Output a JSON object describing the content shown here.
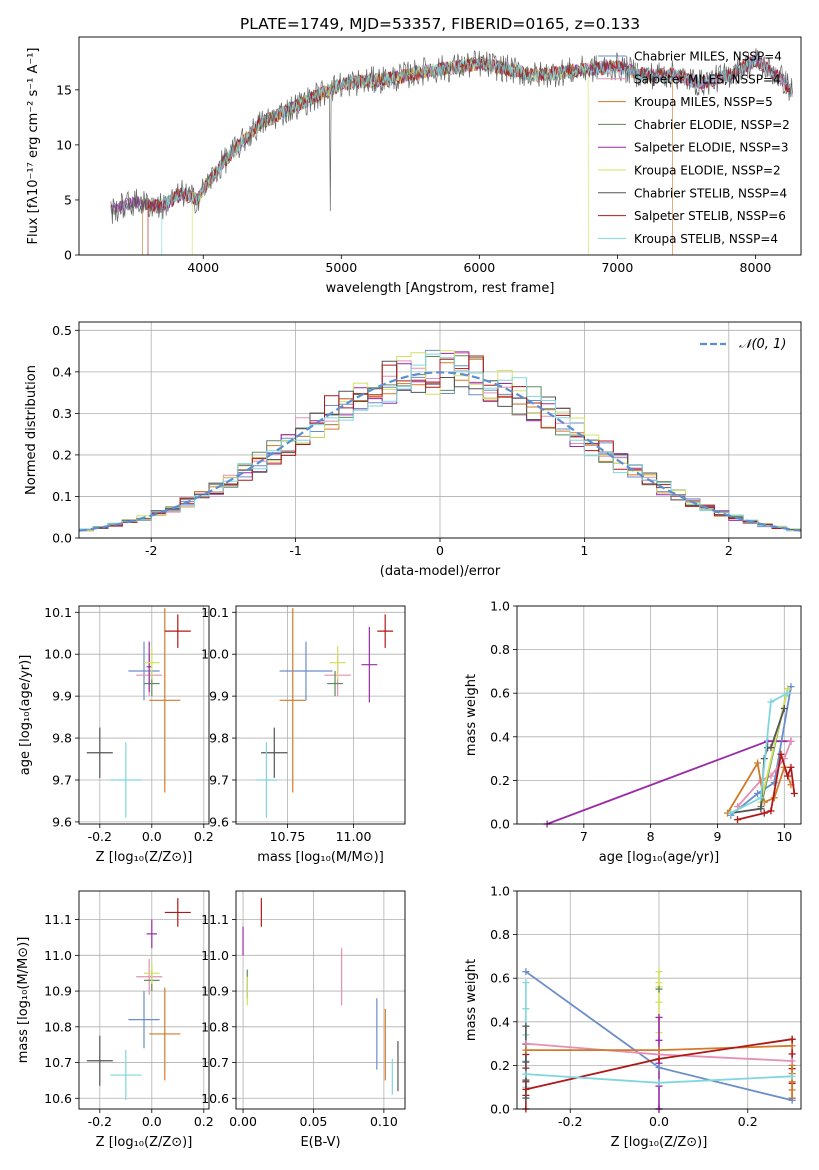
{
  "figure_title": "PLATE=1749, MJD=53357, FIBERID=0165, z=0.133",
  "colors": {
    "chabrier_miles": "#6b8ec9",
    "salpeter_miles": "#e58fb4",
    "kroupa_miles": "#d27a2a",
    "chabrier_elodie": "#5e8b5e",
    "salpeter_elodie": "#9b2aa8",
    "kroupa_elodie": "#d4e060",
    "chabrier_stelib": "#555555",
    "salpeter_stelib": "#b01818",
    "kroupa_stelib": "#7fd7dd",
    "gauss": "#5b8fd0",
    "grid": "#b0b0b0"
  },
  "chart_data": [
    {
      "id": "spectrum",
      "type": "line",
      "xlabel": "wavelength [Angstrom, rest frame]",
      "ylabel": "Flux [fλ10⁻¹⁷ erg cm⁻² s⁻¹ A⁻¹]",
      "xlim": [
        3100,
        8330
      ],
      "ylim": [
        0,
        19.8
      ],
      "xticks": [
        4000,
        5000,
        6000,
        7000,
        8000
      ],
      "yticks": [
        0,
        5,
        10,
        15
      ],
      "grid": false,
      "legend_position": "top-right",
      "envelope_wavelength": [
        3330,
        3500,
        3700,
        3850,
        3950,
        4050,
        4150,
        4250,
        4400,
        4550,
        4700,
        4850,
        5000,
        5200,
        5400,
        5600,
        5800,
        6000,
        6200,
        6400,
        6600,
        6800,
        7000,
        7200,
        7400,
        7600,
        7800,
        8000,
        8200,
        8270
      ],
      "envelope_flux": [
        4.0,
        4.8,
        4.4,
        5.6,
        5.0,
        6.8,
        8.5,
        9.8,
        11.8,
        12.8,
        13.7,
        14.6,
        15.5,
        15.8,
        16.1,
        16.7,
        17.0,
        17.4,
        16.9,
        16.3,
        16.6,
        16.9,
        17.1,
        16.3,
        16.4,
        15.6,
        16.3,
        17.7,
        15.9,
        14.8
      ],
      "legend": [
        "Chabrier MILES, N_SSP=4",
        "Salpeter MILES, N_SSP=4",
        "Kroupa MILES, N_SSP=5",
        "Chabrier ELODIE, N_SSP=2",
        "Salpeter ELODIE, N_SSP=3",
        "Kroupa ELODIE, N_SSP=2",
        "Chabrier STELIB, N_SSP=4",
        "Salpeter STELIB, N_SSP=6",
        "Kroupa STELIB, N_SSP=4"
      ]
    },
    {
      "id": "residuals",
      "type": "line",
      "xlabel": "(data-model)/error",
      "ylabel": "Normed distribution",
      "xlim": [
        -2.5,
        2.5
      ],
      "ylim": [
        0,
        0.52
      ],
      "xticks": [
        -2,
        -1,
        0,
        1,
        2
      ],
      "yticks": [
        0.0,
        0.1,
        0.2,
        0.3,
        0.4,
        0.5
      ],
      "grid": true,
      "legend_position": "top-right",
      "gauss_label": "𝒩(0, 1)",
      "hist_bins": 50,
      "hist_peak": 0.5
    },
    {
      "id": "age_vs_Z",
      "type": "scatter",
      "xlabel": "Z [log₁₀(Z/Z⊙)]",
      "ylabel": "age [log₁₀(age/yr)]",
      "xlim": [
        -0.28,
        0.22
      ],
      "ylim": [
        9.595,
        10.115
      ],
      "xticks": [
        -0.2,
        0.0,
        0.2
      ],
      "yticks": [
        9.6,
        9.7,
        9.8,
        9.9,
        10.0,
        10.1
      ],
      "grid": true,
      "points": [
        {
          "c": "chabrier_miles",
          "x": -0.03,
          "xerr": 0.06,
          "y": 9.96,
          "yerr": 0.07
        },
        {
          "c": "salpeter_miles",
          "x": -0.01,
          "xerr": 0.05,
          "y": 9.95,
          "yerr": 0.05
        },
        {
          "c": "kroupa_miles",
          "x": 0.05,
          "xerr": 0.06,
          "y": 9.89,
          "yerr": 0.22
        },
        {
          "c": "chabrier_elodie",
          "x": 0.0,
          "xerr": 0.03,
          "y": 9.93,
          "yerr": 0.03
        },
        {
          "c": "salpeter_elodie",
          "x": -0.01,
          "xerr": 0.01,
          "y": 9.97,
          "yerr": 0.06
        },
        {
          "c": "kroupa_elodie",
          "x": 0.0,
          "xerr": 0.03,
          "y": 9.98,
          "yerr": 0.04
        },
        {
          "c": "chabrier_stelib",
          "x": -0.2,
          "xerr": 0.05,
          "y": 9.765,
          "yerr": 0.06
        },
        {
          "c": "salpeter_stelib",
          "x": 0.1,
          "xerr": 0.05,
          "y": 10.055,
          "yerr": 0.04
        },
        {
          "c": "kroupa_stelib",
          "x": -0.1,
          "xerr": 0.06,
          "y": 9.7,
          "yerr": 0.09
        }
      ]
    },
    {
      "id": "age_vs_mass",
      "type": "scatter",
      "xlabel": "mass [log₁₀(M/M⊙)]",
      "ylabel": "",
      "xlim": [
        10.555,
        11.195
      ],
      "ylim": [
        9.595,
        10.115
      ],
      "xticks": [
        10.75,
        11.0
      ],
      "xtick_labels": [
        "10.75",
        "11.00"
      ],
      "yticks": [
        9.6,
        9.7,
        9.8,
        9.9,
        10.0,
        10.1
      ],
      "grid": true,
      "points": [
        {
          "c": "chabrier_miles",
          "x": 10.82,
          "xerr": 0.1,
          "y": 9.96,
          "yerr": 0.07
        },
        {
          "c": "salpeter_miles",
          "x": 10.94,
          "xerr": 0.05,
          "y": 9.95,
          "yerr": 0.05
        },
        {
          "c": "kroupa_miles",
          "x": 10.77,
          "xerr": 0.05,
          "y": 9.89,
          "yerr": 0.22
        },
        {
          "c": "chabrier_elodie",
          "x": 10.93,
          "xerr": 0.03,
          "y": 9.93,
          "yerr": 0.03
        },
        {
          "c": "salpeter_elodie",
          "x": 11.06,
          "xerr": 0.03,
          "y": 9.975,
          "yerr": 0.09
        },
        {
          "c": "kroupa_elodie",
          "x": 10.94,
          "xerr": 0.03,
          "y": 9.98,
          "yerr": 0.04
        },
        {
          "c": "chabrier_stelib",
          "x": 10.7,
          "xerr": 0.05,
          "y": 9.765,
          "yerr": 0.06
        },
        {
          "c": "salpeter_stelib",
          "x": 11.12,
          "xerr": 0.03,
          "y": 10.055,
          "yerr": 0.04
        },
        {
          "c": "kroupa_stelib",
          "x": 10.67,
          "xerr": 0.04,
          "y": 9.7,
          "yerr": 0.09
        }
      ]
    },
    {
      "id": "weight_vs_age",
      "type": "line",
      "xlabel": "age [log₁₀(age/yr)]",
      "ylabel": "mass weight",
      "xlim": [
        6.0,
        10.25
      ],
      "ylim": [
        0.0,
        1.0
      ],
      "xticks": [
        7,
        8,
        9,
        10
      ],
      "yticks": [
        0.0,
        0.2,
        0.4,
        0.6,
        0.8,
        1.0
      ],
      "grid": true,
      "series": [
        {
          "c": "salpeter_elodie",
          "x": [
            6.45,
            9.75,
            10.1
          ],
          "y": [
            0.0,
            0.38,
            0.38
          ]
        },
        {
          "c": "chabrier_miles",
          "x": [
            9.2,
            9.6,
            9.85,
            10.1
          ],
          "y": [
            0.04,
            0.14,
            0.19,
            0.63
          ]
        },
        {
          "c": "salpeter_miles",
          "x": [
            9.3,
            9.65,
            9.8,
            10.0,
            10.1
          ],
          "y": [
            0.08,
            0.2,
            0.22,
            0.3,
            0.38
          ]
        },
        {
          "c": "kroupa_miles",
          "x": [
            9.15,
            9.6,
            9.7,
            9.85,
            10.0,
            10.1
          ],
          "y": [
            0.05,
            0.28,
            0.1,
            0.12,
            0.26,
            0.18
          ]
        },
        {
          "c": "chabrier_elodie",
          "x": [
            9.65,
            10.05
          ],
          "y": [
            0.08,
            0.62
          ]
        },
        {
          "c": "kroupa_elodie",
          "x": [
            9.65,
            10.05
          ],
          "y": [
            0.1,
            0.62
          ]
        },
        {
          "c": "chabrier_stelib",
          "x": [
            9.2,
            9.65,
            9.7,
            9.75,
            9.8,
            10.0
          ],
          "y": [
            0.05,
            0.07,
            0.3,
            0.35,
            0.35,
            0.53
          ]
        },
        {
          "c": "salpeter_stelib",
          "x": [
            9.3,
            9.7,
            9.8,
            9.95,
            10.05,
            10.1,
            10.15
          ],
          "y": [
            0.02,
            0.05,
            0.06,
            0.32,
            0.22,
            0.26,
            0.14
          ]
        },
        {
          "c": "kroupa_stelib",
          "x": [
            9.2,
            9.65,
            9.8,
            10.05
          ],
          "y": [
            0.05,
            0.12,
            0.56,
            0.6
          ]
        }
      ]
    },
    {
      "id": "mass_vs_Z",
      "type": "scatter",
      "xlabel": "Z [log₁₀(Z/Z⊙)]",
      "ylabel": "mass [log₁₀(M/M⊙)]",
      "xlim": [
        -0.28,
        0.22
      ],
      "ylim": [
        10.57,
        11.18
      ],
      "xticks": [
        -0.2,
        0.0,
        0.2
      ],
      "yticks": [
        10.6,
        10.7,
        10.8,
        10.9,
        11.0,
        11.1
      ],
      "grid": true,
      "points": [
        {
          "c": "chabrier_miles",
          "x": -0.03,
          "xerr": 0.06,
          "y": 10.82,
          "yerr": 0.08
        },
        {
          "c": "salpeter_miles",
          "x": -0.01,
          "xerr": 0.05,
          "y": 10.94,
          "yerr": 0.05
        },
        {
          "c": "kroupa_miles",
          "x": 0.05,
          "xerr": 0.06,
          "y": 10.78,
          "yerr": 0.13
        },
        {
          "c": "chabrier_elodie",
          "x": 0.0,
          "xerr": 0.03,
          "y": 10.93,
          "yerr": 0.03
        },
        {
          "c": "salpeter_elodie",
          "x": 0.0,
          "xerr": 0.02,
          "y": 11.06,
          "yerr": 0.04
        },
        {
          "c": "kroupa_elodie",
          "x": 0.0,
          "xerr": 0.03,
          "y": 10.95,
          "yerr": 0.03
        },
        {
          "c": "chabrier_stelib",
          "x": -0.2,
          "xerr": 0.05,
          "y": 10.705,
          "yerr": 0.07
        },
        {
          "c": "salpeter_stelib",
          "x": 0.1,
          "xerr": 0.05,
          "y": 11.12,
          "yerr": 0.04
        },
        {
          "c": "kroupa_stelib",
          "x": -0.1,
          "xerr": 0.06,
          "y": 10.665,
          "yerr": 0.07
        }
      ]
    },
    {
      "id": "mass_vs_ebv",
      "type": "scatter",
      "xlabel": "E(B-V)",
      "ylabel": "",
      "xlim": [
        -0.005,
        0.115
      ],
      "ylim": [
        10.57,
        11.18
      ],
      "xticks": [
        0.0,
        0.05,
        0.1
      ],
      "xtick_labels": [
        "0.00",
        "0.05",
        "0.10"
      ],
      "yticks": [
        10.6,
        10.7,
        10.8,
        10.9,
        11.0,
        11.1
      ],
      "grid": true,
      "points": [
        {
          "c": "chabrier_miles",
          "x": 0.095,
          "xerr": 0.0,
          "y": 10.78,
          "yerr": 0.1
        },
        {
          "c": "salpeter_miles",
          "x": 0.07,
          "xerr": 0.0,
          "y": 10.94,
          "yerr": 0.08
        },
        {
          "c": "kroupa_miles",
          "x": 0.101,
          "xerr": 0.0,
          "y": 10.75,
          "yerr": 0.1
        },
        {
          "c": "chabrier_elodie",
          "x": 0.003,
          "xerr": 0.0,
          "y": 10.92,
          "yerr": 0.04
        },
        {
          "c": "salpeter_elodie",
          "x": 0.0,
          "xerr": 0.0,
          "y": 11.04,
          "yerr": 0.04
        },
        {
          "c": "kroupa_elodie",
          "x": 0.003,
          "xerr": 0.0,
          "y": 10.9,
          "yerr": 0.04
        },
        {
          "c": "chabrier_stelib",
          "x": 0.11,
          "xerr": 0.0,
          "y": 10.69,
          "yerr": 0.07
        },
        {
          "c": "salpeter_stelib",
          "x": 0.013,
          "xerr": 0.0,
          "y": 11.12,
          "yerr": 0.04
        },
        {
          "c": "kroupa_stelib",
          "x": 0.106,
          "xerr": 0.0,
          "y": 10.66,
          "yerr": 0.05
        }
      ]
    },
    {
      "id": "weight_vs_Z",
      "type": "line",
      "xlabel": "Z [log₁₀(Z/Z⊙)]",
      "ylabel": "mass weight",
      "xlim": [
        -0.32,
        0.32
      ],
      "ylim": [
        0.0,
        1.0
      ],
      "xticks": [
        -0.2,
        0.0,
        0.2
      ],
      "yticks": [
        0.0,
        0.2,
        0.4,
        0.6,
        0.8,
        1.0
      ],
      "grid": true,
      "series": [
        {
          "c": "chabrier_miles",
          "x": [
            -0.3,
            0.0,
            0.3
          ],
          "y": [
            0.63,
            0.19,
            0.04
          ]
        },
        {
          "c": "salpeter_miles",
          "x": [
            -0.3,
            0.0,
            0.3
          ],
          "y": [
            0.3,
            0.25,
            0.22
          ]
        },
        {
          "c": "kroupa_miles",
          "x": [
            -0.3,
            0.0,
            0.3
          ],
          "y": [
            0.27,
            0.27,
            0.29
          ]
        },
        {
          "c": "salpeter_stelib",
          "x": [
            -0.3,
            0.0,
            0.3
          ],
          "y": [
            0.09,
            0.23,
            0.32
          ]
        },
        {
          "c": "kroupa_stelib",
          "x": [
            -0.3,
            0.0,
            0.3
          ],
          "y": [
            0.16,
            0.12,
            0.15
          ]
        },
        {
          "c": "chabrier_elodie",
          "x": [
            0.0
          ],
          "y": [
            0.55
          ]
        },
        {
          "c": "kroupa_elodie",
          "x": [
            0.0
          ],
          "y": [
            0.58
          ]
        },
        {
          "c": "salpeter_elodie",
          "x": [
            0.0
          ],
          "y": [
            0.0
          ]
        }
      ],
      "stacks": [
        {
          "c": "kroupa_stelib",
          "x": -0.3,
          "ymin": 0.1,
          "ymax": 0.58
        },
        {
          "c": "salpeter_stelib",
          "x": -0.3,
          "ymin": 0.0,
          "ymax": 0.25
        },
        {
          "c": "chabrier_stelib",
          "x": -0.3,
          "ymin": 0.05,
          "ymax": 0.38
        },
        {
          "c": "kroupa_elodie",
          "x": 0.0,
          "ymin": 0.35,
          "ymax": 0.63
        },
        {
          "c": "salpeter_elodie",
          "x": 0.0,
          "ymin": 0.0,
          "ymax": 0.42
        },
        {
          "c": "salpeter_stelib",
          "x": 0.3,
          "ymin": 0.05,
          "ymax": 0.32
        },
        {
          "c": "kroupa_miles",
          "x": 0.3,
          "ymin": 0.05,
          "ymax": 0.2
        }
      ]
    }
  ]
}
